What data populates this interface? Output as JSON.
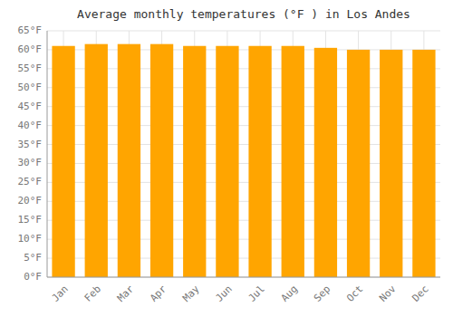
{
  "chart_data": {
    "type": "bar",
    "title": "Average monthly temperatures (°F ) in Los Andes",
    "categories": [
      "Jan",
      "Feb",
      "Mar",
      "Apr",
      "May",
      "Jun",
      "Jul",
      "Aug",
      "Sep",
      "Oct",
      "Nov",
      "Dec"
    ],
    "values": [
      61,
      61.5,
      61.5,
      61.5,
      61,
      61,
      61,
      61,
      60.5,
      60,
      60,
      60
    ],
    "color": "#FFA500",
    "ylim": [
      0,
      65
    ],
    "yticks": [
      {
        "value": 0,
        "label": "0°F"
      },
      {
        "value": 5,
        "label": "5°F"
      },
      {
        "value": 10,
        "label": "10°F"
      },
      {
        "value": 15,
        "label": "15°F"
      },
      {
        "value": 20,
        "label": "20°F"
      },
      {
        "value": 25,
        "label": "25°F"
      },
      {
        "value": 30,
        "label": "30°F"
      },
      {
        "value": 35,
        "label": "35°F"
      },
      {
        "value": 40,
        "label": "40°F"
      },
      {
        "value": 45,
        "label": "45°F"
      },
      {
        "value": 50,
        "label": "50°F"
      },
      {
        "value": 55,
        "label": "55°F"
      },
      {
        "value": 60,
        "label": "60°F"
      },
      {
        "value": 65,
        "label": "65°F"
      }
    ],
    "grid": true
  }
}
